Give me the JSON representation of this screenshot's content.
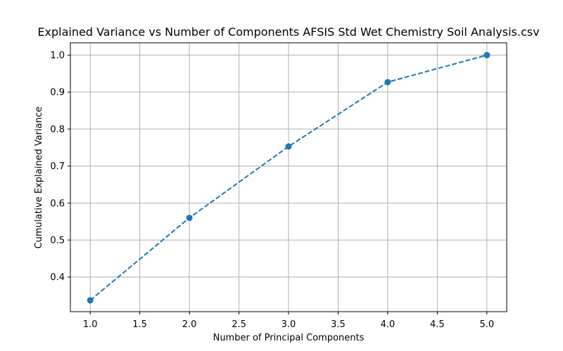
{
  "chart_data": {
    "type": "line",
    "title": "Explained Variance vs Number of Components AFSIS Std Wet Chemistry Soil Analysis.csv",
    "xlabel": "Number of Principal Components",
    "ylabel": "Cumulative Explained Variance",
    "x": [
      1,
      2,
      3,
      4,
      5
    ],
    "series": [
      {
        "values": [
          0.337,
          0.56,
          0.753,
          0.927,
          1.0
        ],
        "color": "#1f77b4",
        "line_style": "dashed",
        "marker": "circle"
      }
    ],
    "xlim": [
      0.8,
      5.2
    ],
    "ylim": [
      0.3063,
      1.0332
    ],
    "xticks": [
      1.0,
      1.5,
      2.0,
      2.5,
      3.0,
      3.5,
      4.0,
      4.5,
      5.0
    ],
    "xtick_labels": [
      "1.0",
      "1.5",
      "2.0",
      "2.5",
      "3.0",
      "3.5",
      "4.0",
      "4.5",
      "5.0"
    ],
    "yticks": [
      0.4,
      0.5,
      0.6,
      0.7,
      0.8,
      0.9,
      1.0
    ],
    "ytick_labels": [
      "0.4",
      "0.5",
      "0.6",
      "0.7",
      "0.8",
      "0.9",
      "1.0"
    ],
    "grid": true,
    "grid_color": "#b0b0b0"
  }
}
